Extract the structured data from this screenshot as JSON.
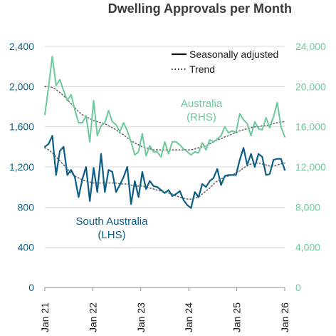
{
  "chart_data": {
    "type": "line",
    "title": "Dwelling Approvals per Month",
    "colors": {
      "south_australia": "#0b5e85",
      "australia": "#6cc99a",
      "trend": "#6a6a6a"
    },
    "x_tick_labels": [
      "Jan 21",
      "Jan 22",
      "Jan 23",
      "Jan 24",
      "Jan 25",
      "Jan 26"
    ],
    "x_range": [
      "Jan 21",
      "Jan 26"
    ],
    "y_left": {
      "ticks": [
        "0",
        "400",
        "800",
        "1,200",
        "1,600",
        "2,000",
        "2,400"
      ],
      "ylim": [
        0,
        2400
      ]
    },
    "y_right": {
      "ticks": [
        "0",
        "4,000",
        "8,000",
        "12,000",
        "16,000",
        "20,000",
        "24,000"
      ],
      "ylim": [
        0,
        24000
      ]
    },
    "legend": {
      "position": "top-right",
      "items": [
        {
          "label": "Seasonally adjusted",
          "style": "solid"
        },
        {
          "label": "Trend",
          "style": "dotted"
        }
      ]
    },
    "annotations": {
      "south_australia": [
        "South Australia",
        "(LHS)"
      ],
      "australia": [
        "Australia",
        "(RHS)"
      ]
    },
    "series": [
      {
        "name": "South Australia",
        "axis": "left",
        "kind": "seasonally adjusted",
        "values": [
          1400,
          1430,
          1510,
          1120,
          1360,
          1400,
          1120,
          1170,
          1100,
          900,
          1080,
          1200,
          860,
          1190,
          950,
          1330,
          950,
          1170,
          1150,
          950,
          1020,
          1100,
          1200,
          830,
          1060,
          900,
          1150,
          980,
          1060,
          1010,
          1000,
          970,
          940,
          970,
          910,
          930,
          960,
          870,
          820,
          790,
          950,
          900,
          1030,
          1000,
          1060,
          1090,
          1180,
          1020,
          1110,
          1120,
          1120,
          1120,
          1270,
          1390,
          1220,
          1330,
          1200,
          1330,
          1300,
          1120,
          1130,
          1270,
          1280,
          1280,
          1170
        ]
      },
      {
        "name": "South Australia",
        "axis": "left",
        "kind": "trend",
        "values": [
          1390,
          1370,
          1340,
          1300,
          1260,
          1220,
          1180,
          1140,
          1110,
          1090,
          1070,
          1060,
          1050,
          1040,
          1040,
          1040,
          1040,
          1040,
          1040,
          1040,
          1030,
          1030,
          1030,
          1020,
          1010,
          1010,
          1010,
          1000,
          990,
          980,
          970,
          960,
          950,
          940,
          930,
          910,
          900,
          890,
          880,
          880,
          890,
          900,
          930,
          960,
          990,
          1030,
          1060,
          1080,
          1100,
          1110,
          1120,
          1140,
          1160,
          1190,
          1210,
          1230,
          1240,
          1240,
          1230,
          1220,
          1210,
          1210,
          1220,
          1230,
          1240
        ]
      },
      {
        "name": "Australia",
        "axis": "right",
        "kind": "seasonally adjusted",
        "values": [
          17200,
          20000,
          23000,
          20100,
          20700,
          19600,
          18600,
          19200,
          17700,
          16400,
          16400,
          17100,
          14500,
          18600,
          15100,
          16100,
          16400,
          17600,
          16500,
          16200,
          15500,
          16400,
          15600,
          14500,
          13200,
          13500,
          15300,
          13100,
          14100,
          13500,
          13500,
          13000,
          14500,
          13300,
          14500,
          14500,
          14200,
          13800,
          13500,
          13200,
          13500,
          13400,
          14400,
          13700,
          14700,
          14500,
          14800,
          15100,
          16000,
          15400,
          15600,
          15400,
          17300,
          16700,
          16300,
          15100,
          16500,
          15800,
          15700,
          16900,
          15900,
          17000,
          18400,
          16000,
          15000
        ]
      },
      {
        "name": "Australia",
        "axis": "right",
        "kind": "trend",
        "values": [
          20000,
          20000,
          19900,
          19700,
          19400,
          19100,
          18700,
          18300,
          17900,
          17500,
          17200,
          17000,
          16800,
          16600,
          16500,
          16400,
          16300,
          16100,
          15900,
          15700,
          15400,
          15200,
          14900,
          14600,
          14400,
          14200,
          14000,
          13900,
          13800,
          13700,
          13700,
          13700,
          13700,
          13700,
          13700,
          13700,
          13700,
          13700,
          13700,
          13700,
          13800,
          13900,
          14000,
          14100,
          14300,
          14500,
          14700,
          14800,
          15000,
          15100,
          15300,
          15400,
          15600,
          15700,
          15800,
          15900,
          16000,
          16000,
          16100,
          16100,
          16200,
          16300,
          16400,
          16500,
          16500
        ]
      }
    ]
  }
}
